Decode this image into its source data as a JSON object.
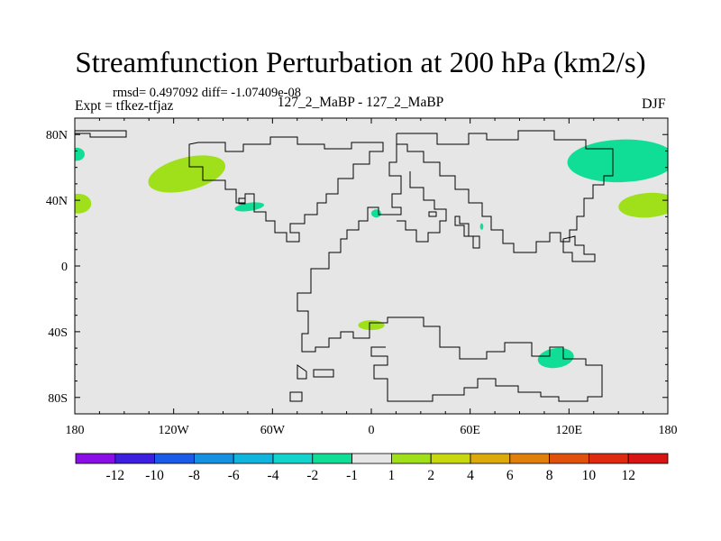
{
  "chart_data": {
    "type": "heatmap",
    "title": "Streamfunction Perturbation at 200 hPa (km2/s)",
    "stats": "rmsd= 0.497092  diff= -1.07409e-08",
    "experiment": "Expt = tfkez-tfjaz",
    "comparison": "127_2_MaBP - 127_2_MaBP",
    "season": "DJF",
    "units": "km2/s",
    "x_range": [
      -180,
      180
    ],
    "y_range": [
      -90,
      90
    ],
    "x_ticks": [
      {
        "value": -180,
        "label": "180"
      },
      {
        "value": -120,
        "label": "120W"
      },
      {
        "value": -60,
        "label": "60W"
      },
      {
        "value": 0,
        "label": "0"
      },
      {
        "value": 60,
        "label": "60E"
      },
      {
        "value": 120,
        "label": "120E"
      },
      {
        "value": 180,
        "label": "180"
      }
    ],
    "y_ticks": [
      {
        "value": 80,
        "label": "80N"
      },
      {
        "value": 40,
        "label": "40N"
      },
      {
        "value": 0,
        "label": "0"
      },
      {
        "value": -40,
        "label": "40S"
      },
      {
        "value": -80,
        "label": "80S"
      }
    ],
    "background_level": "-1 to 1",
    "colorbar": {
      "labels": [
        "-12",
        "-10",
        "-8",
        "-6",
        "-4",
        "-2",
        "-1",
        "1",
        "2",
        "4",
        "6",
        "8",
        "10",
        "12"
      ],
      "colors": [
        "#8a0fe6",
        "#3d1fe0",
        "#1a5ce8",
        "#1690e0",
        "#10b4dc",
        "#12d4cc",
        "#10de96",
        "#e6e6e6",
        "#a0e01a",
        "#c8d80e",
        "#dcaa0a",
        "#e07f0a",
        "#e0520c",
        "#e02a10",
        "#d81414"
      ]
    },
    "anomalies": [
      {
        "lon": -179,
        "lat": 68,
        "rx": 5,
        "ry": 4,
        "color": "#10de96"
      },
      {
        "lon": -178,
        "lat": 38,
        "rx": 8,
        "ry": 6,
        "color": "#a0e01a"
      },
      {
        "lon": -112,
        "lat": 56,
        "rx": 24,
        "ry": 10,
        "color": "#a0e01a",
        "rot": -14
      },
      {
        "lon": -74,
        "lat": 36,
        "rx": 9,
        "ry": 2.5,
        "color": "#10de96",
        "rot": -8
      },
      {
        "lon": 3,
        "lat": 32,
        "rx": 3,
        "ry": 2.5,
        "color": "#10de96"
      },
      {
        "lon": 67,
        "lat": 24,
        "rx": 1,
        "ry": 2,
        "color": "#10de96"
      },
      {
        "lon": 0,
        "lat": -36,
        "rx": 8,
        "ry": 3,
        "color": "#a0e01a"
      },
      {
        "lon": 112,
        "lat": -56,
        "rx": 11,
        "ry": 6,
        "color": "#10de96",
        "rot": -8
      },
      {
        "lon": 152,
        "lat": 64,
        "rx": 33,
        "ry": 13,
        "color": "#10de96",
        "rot": -2
      },
      {
        "lon": 168,
        "lat": 37,
        "rx": 18,
        "ry": 7.5,
        "color": "#a0e01a",
        "rot": -4
      }
    ]
  }
}
